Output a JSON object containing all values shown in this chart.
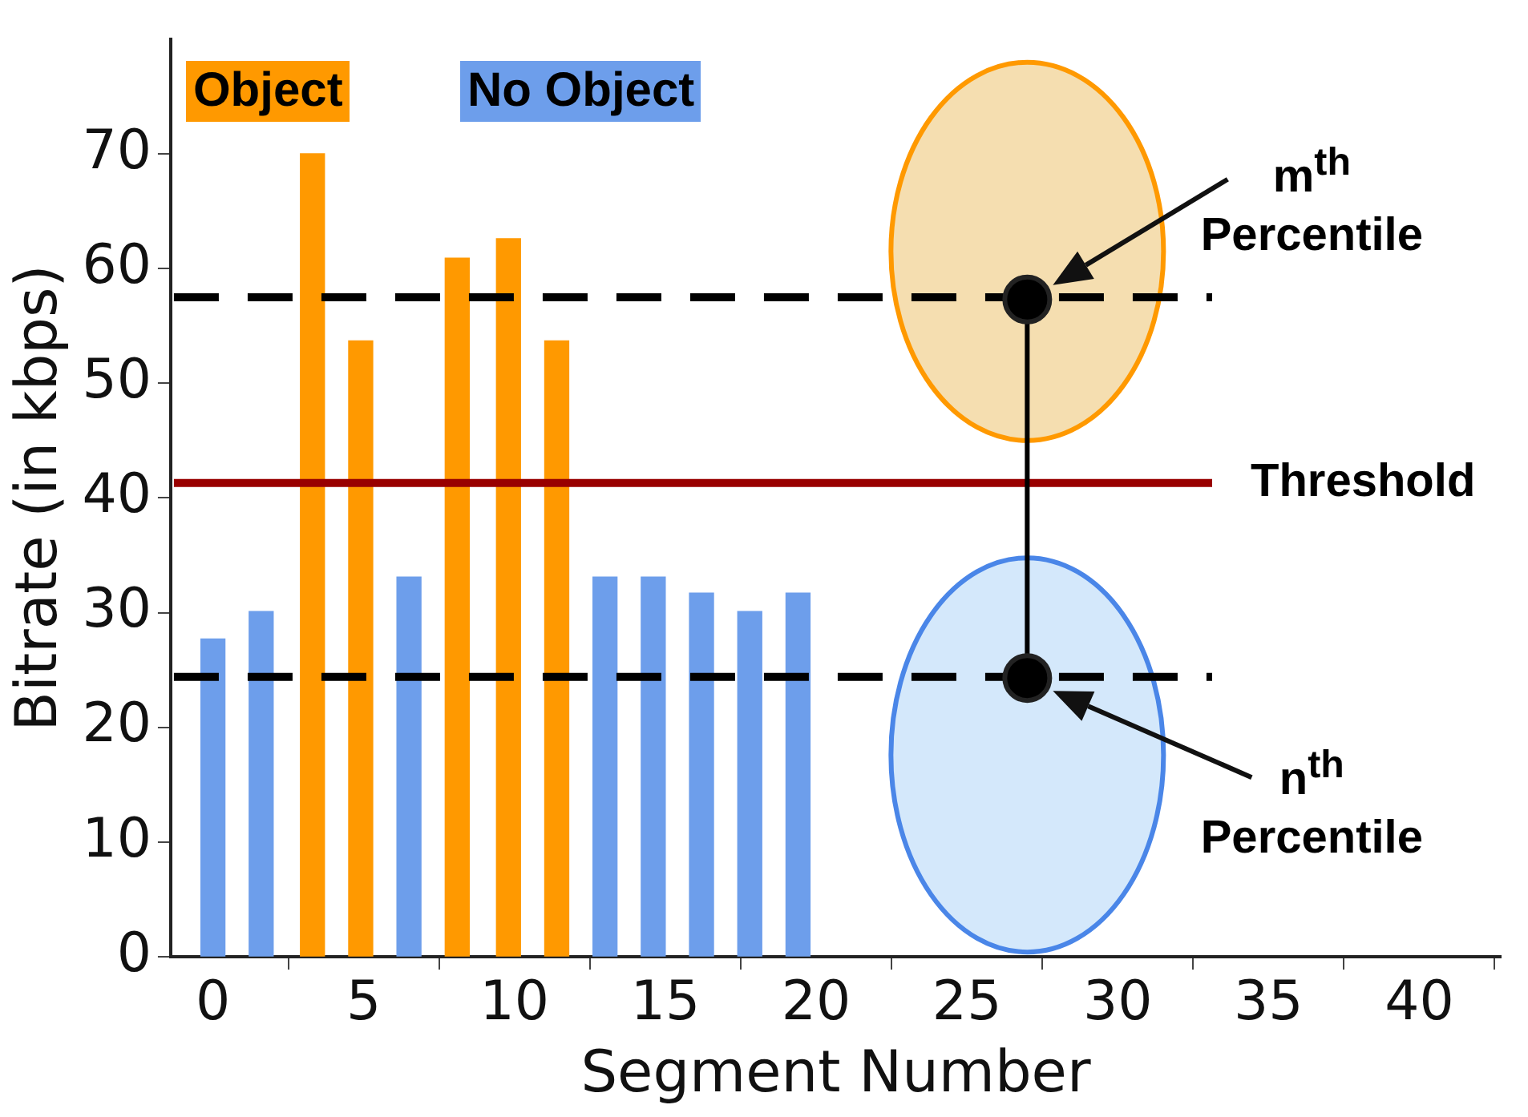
{
  "chart_data": {
    "type": "bar",
    "xlabel": "Segment Number",
    "ylabel": "Bitrate (in kbps)",
    "xlim": [
      -1.4,
      42.7
    ],
    "xticks": [
      0,
      5,
      10,
      15,
      20,
      25,
      30,
      35,
      40
    ],
    "ylim": [
      0,
      80
    ],
    "yticks": [
      0,
      10,
      20,
      30,
      40,
      50,
      60,
      70
    ],
    "grid": false,
    "legend": "top left",
    "series": [
      {
        "name": "Object",
        "color": "#ff9900",
        "x": [
          3.3,
          4.9,
          8.1,
          9.8,
          11.4
        ],
        "values": [
          70,
          53.7,
          60.9,
          62.6,
          53.7
        ]
      },
      {
        "name": "No Object",
        "color": "#6d9eeb",
        "x": [
          0,
          1.6,
          6.5,
          13,
          14.6,
          16.2,
          17.8,
          19.4
        ],
        "values": [
          27.7,
          30.1,
          33.1,
          33.1,
          33.1,
          31.7,
          30.1,
          31.7
        ]
      },
      {
        "type": "line",
        "color": "#000000",
        "marker": "circle",
        "x": [
          27,
          27
        ],
        "values": [
          57.3,
          24.3
        ]
      }
    ],
    "ref_lines": [
      {
        "axis": "y",
        "value": 57.5,
        "color": "#000000",
        "line_style": "dashed"
      },
      {
        "axis": "y",
        "value": 41.3,
        "label": "Threshold",
        "color": "#990000",
        "line_style": "solid"
      },
      {
        "axis": "y",
        "value": 24.4,
        "color": "#000000",
        "line_style": "dashed"
      }
    ],
    "annotations": [
      "m$^{th}$ Percentile",
      "n$^{th}$ Percentile"
    ]
  }
}
